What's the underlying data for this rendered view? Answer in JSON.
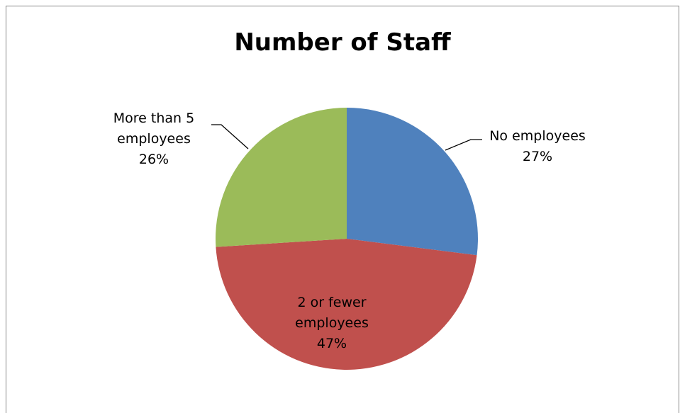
{
  "chart_data": {
    "type": "pie",
    "title": "Number of Staff",
    "start_angle_deg": 0,
    "direction": "clockwise",
    "slices": [
      {
        "label_lines": [
          "No employees"
        ],
        "percent_label": "27%",
        "value": 27,
        "color": "#4F81BD",
        "label_position": "outside"
      },
      {
        "label_lines": [
          "2 or fewer",
          "employees"
        ],
        "percent_label": "47%",
        "value": 47,
        "color": "#C0504D",
        "label_position": "inside"
      },
      {
        "label_lines": [
          "More than 5",
          "employees"
        ],
        "percent_label": "26%",
        "value": 26,
        "color": "#9BBB59",
        "label_position": "outside"
      }
    ],
    "legend": "none"
  }
}
